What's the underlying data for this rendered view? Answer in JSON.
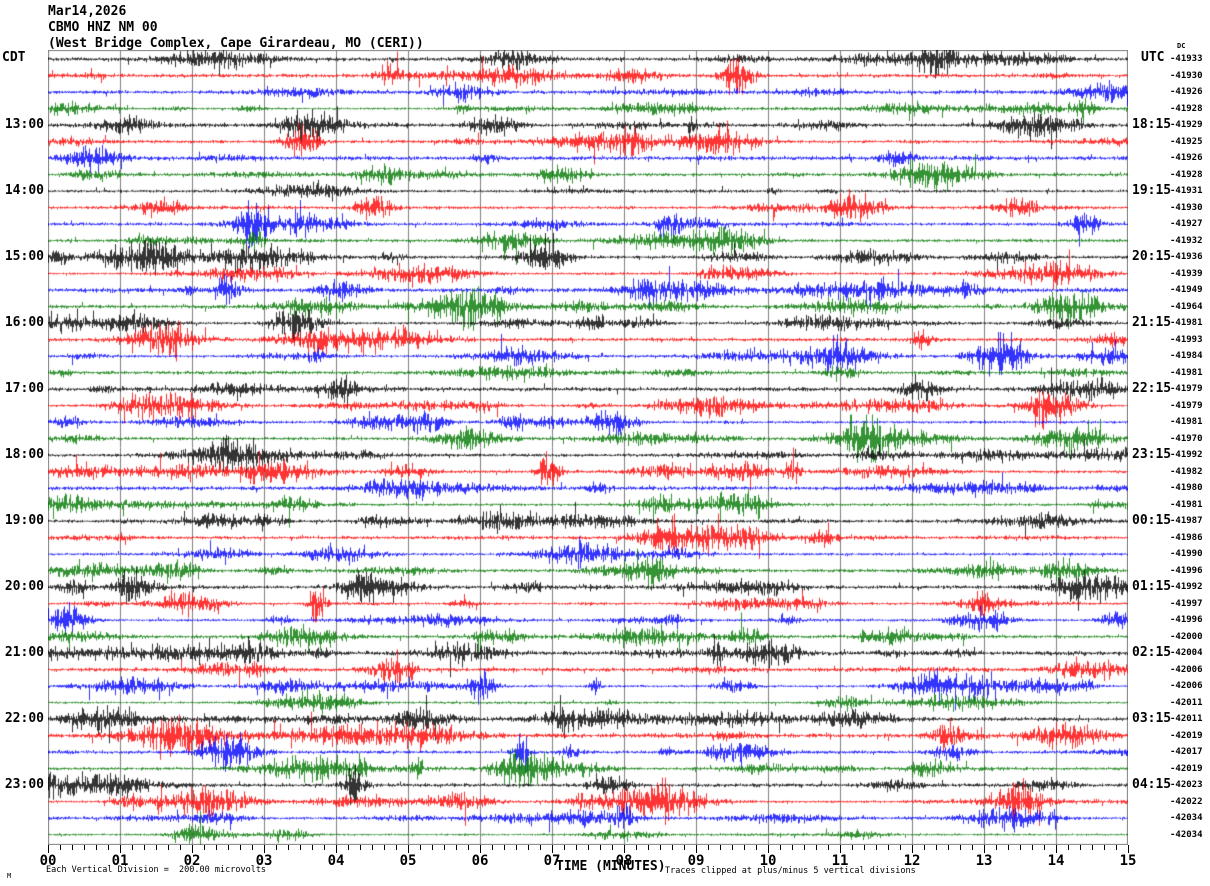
{
  "header": {
    "date_line": "Mar14,2026",
    "station_line": "CBMO HNZ NM 00",
    "location_line": "(West Bridge Complex, Cape Girardeau, MO (CERI))",
    "left_timezone_label": "CDT",
    "right_timezone_label": "UTC",
    "dc_column_label": "DC"
  },
  "x_axis": {
    "title": "TIME (MINUTES)",
    "tick_labels": [
      "00",
      "01",
      "02",
      "03",
      "04",
      "05",
      "06",
      "07",
      "08",
      "09",
      "10",
      "11",
      "12",
      "13",
      "14",
      "15"
    ],
    "minutes_per_line": 15,
    "minor_intervals_per_minute": 6
  },
  "footer": {
    "scale_note": "Each Vertical Division =  200.00 microvolts",
    "clip_note": "Traces clipped at plus/minus 5 vertical divisions",
    "corner_mark": "M"
  },
  "colors": {
    "black": "#000000",
    "red": "#ff0000",
    "blue": "#0000ff",
    "green": "#007700",
    "grid": "#808080"
  },
  "chart_data": {
    "type": "line",
    "title": "CBMO HNZ NM 00 helicorder, 15-minute traces per row",
    "xlabel": "TIME (MINUTES)",
    "x_range_minutes": [
      0,
      15
    ],
    "trace_color_cycle": [
      "black",
      "red",
      "blue",
      "green"
    ],
    "rows": [
      {
        "cdt": "",
        "utc": "",
        "dc": -41933,
        "color": "black"
      },
      {
        "cdt": "",
        "utc": "",
        "dc": -41930,
        "color": "red"
      },
      {
        "cdt": "",
        "utc": "",
        "dc": -41926,
        "color": "blue"
      },
      {
        "cdt": "",
        "utc": "",
        "dc": -41928,
        "color": "green"
      },
      {
        "cdt": "13:00",
        "utc": "18:15",
        "dc": -41929,
        "color": "black"
      },
      {
        "cdt": "",
        "utc": "",
        "dc": -41925,
        "color": "red"
      },
      {
        "cdt": "",
        "utc": "",
        "dc": -41926,
        "color": "blue"
      },
      {
        "cdt": "",
        "utc": "",
        "dc": -41928,
        "color": "green"
      },
      {
        "cdt": "14:00",
        "utc": "19:15",
        "dc": -41931,
        "color": "black"
      },
      {
        "cdt": "",
        "utc": "",
        "dc": -41930,
        "color": "red"
      },
      {
        "cdt": "",
        "utc": "",
        "dc": -41927,
        "color": "blue"
      },
      {
        "cdt": "",
        "utc": "",
        "dc": -41932,
        "color": "green"
      },
      {
        "cdt": "15:00",
        "utc": "20:15",
        "dc": -41936,
        "color": "black"
      },
      {
        "cdt": "",
        "utc": "",
        "dc": -41939,
        "color": "red"
      },
      {
        "cdt": "",
        "utc": "",
        "dc": -41949,
        "color": "blue"
      },
      {
        "cdt": "",
        "utc": "",
        "dc": -41964,
        "color": "green"
      },
      {
        "cdt": "16:00",
        "utc": "21:15",
        "dc": -41981,
        "color": "black"
      },
      {
        "cdt": "",
        "utc": "",
        "dc": -41993,
        "color": "red"
      },
      {
        "cdt": "",
        "utc": "",
        "dc": -41984,
        "color": "blue"
      },
      {
        "cdt": "",
        "utc": "",
        "dc": -41981,
        "color": "green"
      },
      {
        "cdt": "17:00",
        "utc": "22:15",
        "dc": -41979,
        "color": "black"
      },
      {
        "cdt": "",
        "utc": "",
        "dc": -41979,
        "color": "red"
      },
      {
        "cdt": "",
        "utc": "",
        "dc": -41981,
        "color": "blue"
      },
      {
        "cdt": "",
        "utc": "",
        "dc": -41970,
        "color": "green"
      },
      {
        "cdt": "18:00",
        "utc": "23:15",
        "dc": -41992,
        "color": "black"
      },
      {
        "cdt": "",
        "utc": "",
        "dc": -41982,
        "color": "red"
      },
      {
        "cdt": "",
        "utc": "",
        "dc": -41980,
        "color": "blue"
      },
      {
        "cdt": "",
        "utc": "",
        "dc": -41981,
        "color": "green"
      },
      {
        "cdt": "19:00",
        "utc": "00:15",
        "dc": -41987,
        "color": "black"
      },
      {
        "cdt": "",
        "utc": "",
        "dc": -41986,
        "color": "red"
      },
      {
        "cdt": "",
        "utc": "",
        "dc": -41990,
        "color": "blue"
      },
      {
        "cdt": "",
        "utc": "",
        "dc": -41996,
        "color": "green"
      },
      {
        "cdt": "20:00",
        "utc": "01:15",
        "dc": -41992,
        "color": "black"
      },
      {
        "cdt": "",
        "utc": "",
        "dc": -41997,
        "color": "red"
      },
      {
        "cdt": "",
        "utc": "",
        "dc": -41996,
        "color": "blue"
      },
      {
        "cdt": "",
        "utc": "",
        "dc": -42000,
        "color": "green"
      },
      {
        "cdt": "21:00",
        "utc": "02:15",
        "dc": -42004,
        "color": "black"
      },
      {
        "cdt": "",
        "utc": "",
        "dc": -42006,
        "color": "red"
      },
      {
        "cdt": "",
        "utc": "",
        "dc": -42006,
        "color": "blue"
      },
      {
        "cdt": "",
        "utc": "",
        "dc": -42011,
        "color": "green"
      },
      {
        "cdt": "22:00",
        "utc": "03:15",
        "dc": -42011,
        "color": "black"
      },
      {
        "cdt": "",
        "utc": "",
        "dc": -42019,
        "color": "red"
      },
      {
        "cdt": "",
        "utc": "",
        "dc": -42017,
        "color": "blue"
      },
      {
        "cdt": "",
        "utc": "",
        "dc": -42019,
        "color": "green"
      },
      {
        "cdt": "23:00",
        "utc": "04:15",
        "dc": -42023,
        "color": "black"
      },
      {
        "cdt": "",
        "utc": "",
        "dc": -42022,
        "color": "red"
      },
      {
        "cdt": "",
        "utc": "",
        "dc": -42034,
        "color": "blue"
      },
      {
        "cdt": "",
        "utc": "",
        "dc": -42034,
        "color": "green"
      }
    ]
  }
}
